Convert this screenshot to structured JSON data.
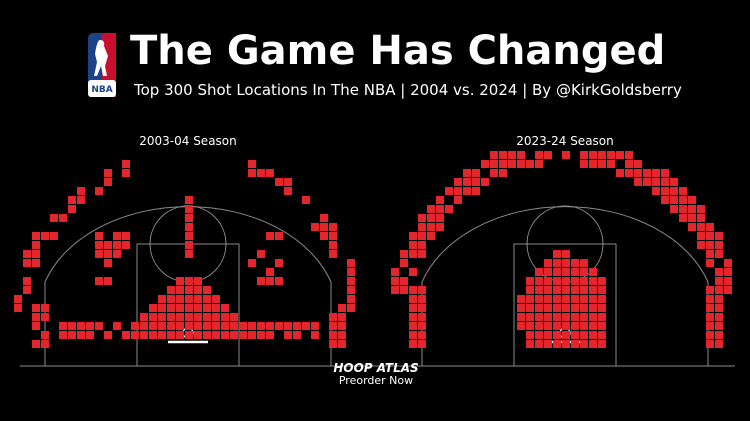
{
  "header": {
    "logo": "NBA",
    "title": "The Game Has Changed",
    "subtitle": "Top 300 Shot Locations In The NBA | 2004 vs. 2024 | By @KirkGoldsberry"
  },
  "panels": [
    {
      "label": "2003-04 Season"
    },
    {
      "label": "2023-24 Season"
    }
  ],
  "footer": {
    "brand": "HOOP ATLAS",
    "cta": "Preorder Now"
  }
}
